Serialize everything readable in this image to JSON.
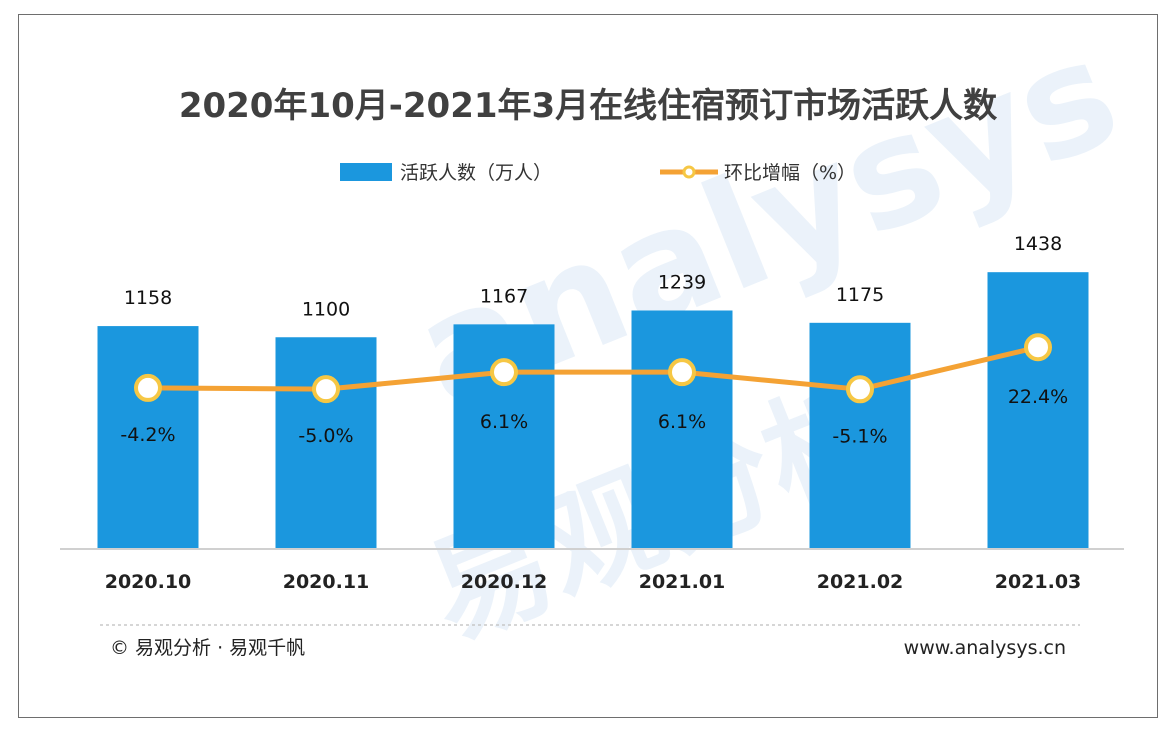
{
  "chart_data": {
    "type": "bar",
    "title": "2020年10月-2021年3月在线住宿预订市场活跃人数",
    "categories": [
      "2020.10",
      "2020.11",
      "2020.12",
      "2021.01",
      "2021.02",
      "2021.03"
    ],
    "series": [
      {
        "name": "活跃人数（万人）",
        "type": "bar",
        "values": [
          1158,
          1100,
          1167,
          1239,
          1175,
          1438
        ]
      },
      {
        "name": "环比增幅（%）",
        "type": "line",
        "values": [
          -4.2,
          -5.0,
          6.1,
          6.1,
          -5.1,
          22.4
        ],
        "labels": [
          "-4.2%",
          "-5.0%",
          "6.1%",
          "6.1%",
          "-5.1%",
          "22.4%"
        ]
      }
    ],
    "colors": {
      "bar": "#1b97de",
      "line": "#f4a234",
      "marker_fill": "#ffffff",
      "marker_stroke": "#f6c744"
    }
  },
  "footer": {
    "copyright": "© 易观分析 · 易观千帆",
    "website": "www.analysys.cn"
  },
  "watermark": {
    "text": "analysys",
    "cn_text": "易观分析"
  }
}
